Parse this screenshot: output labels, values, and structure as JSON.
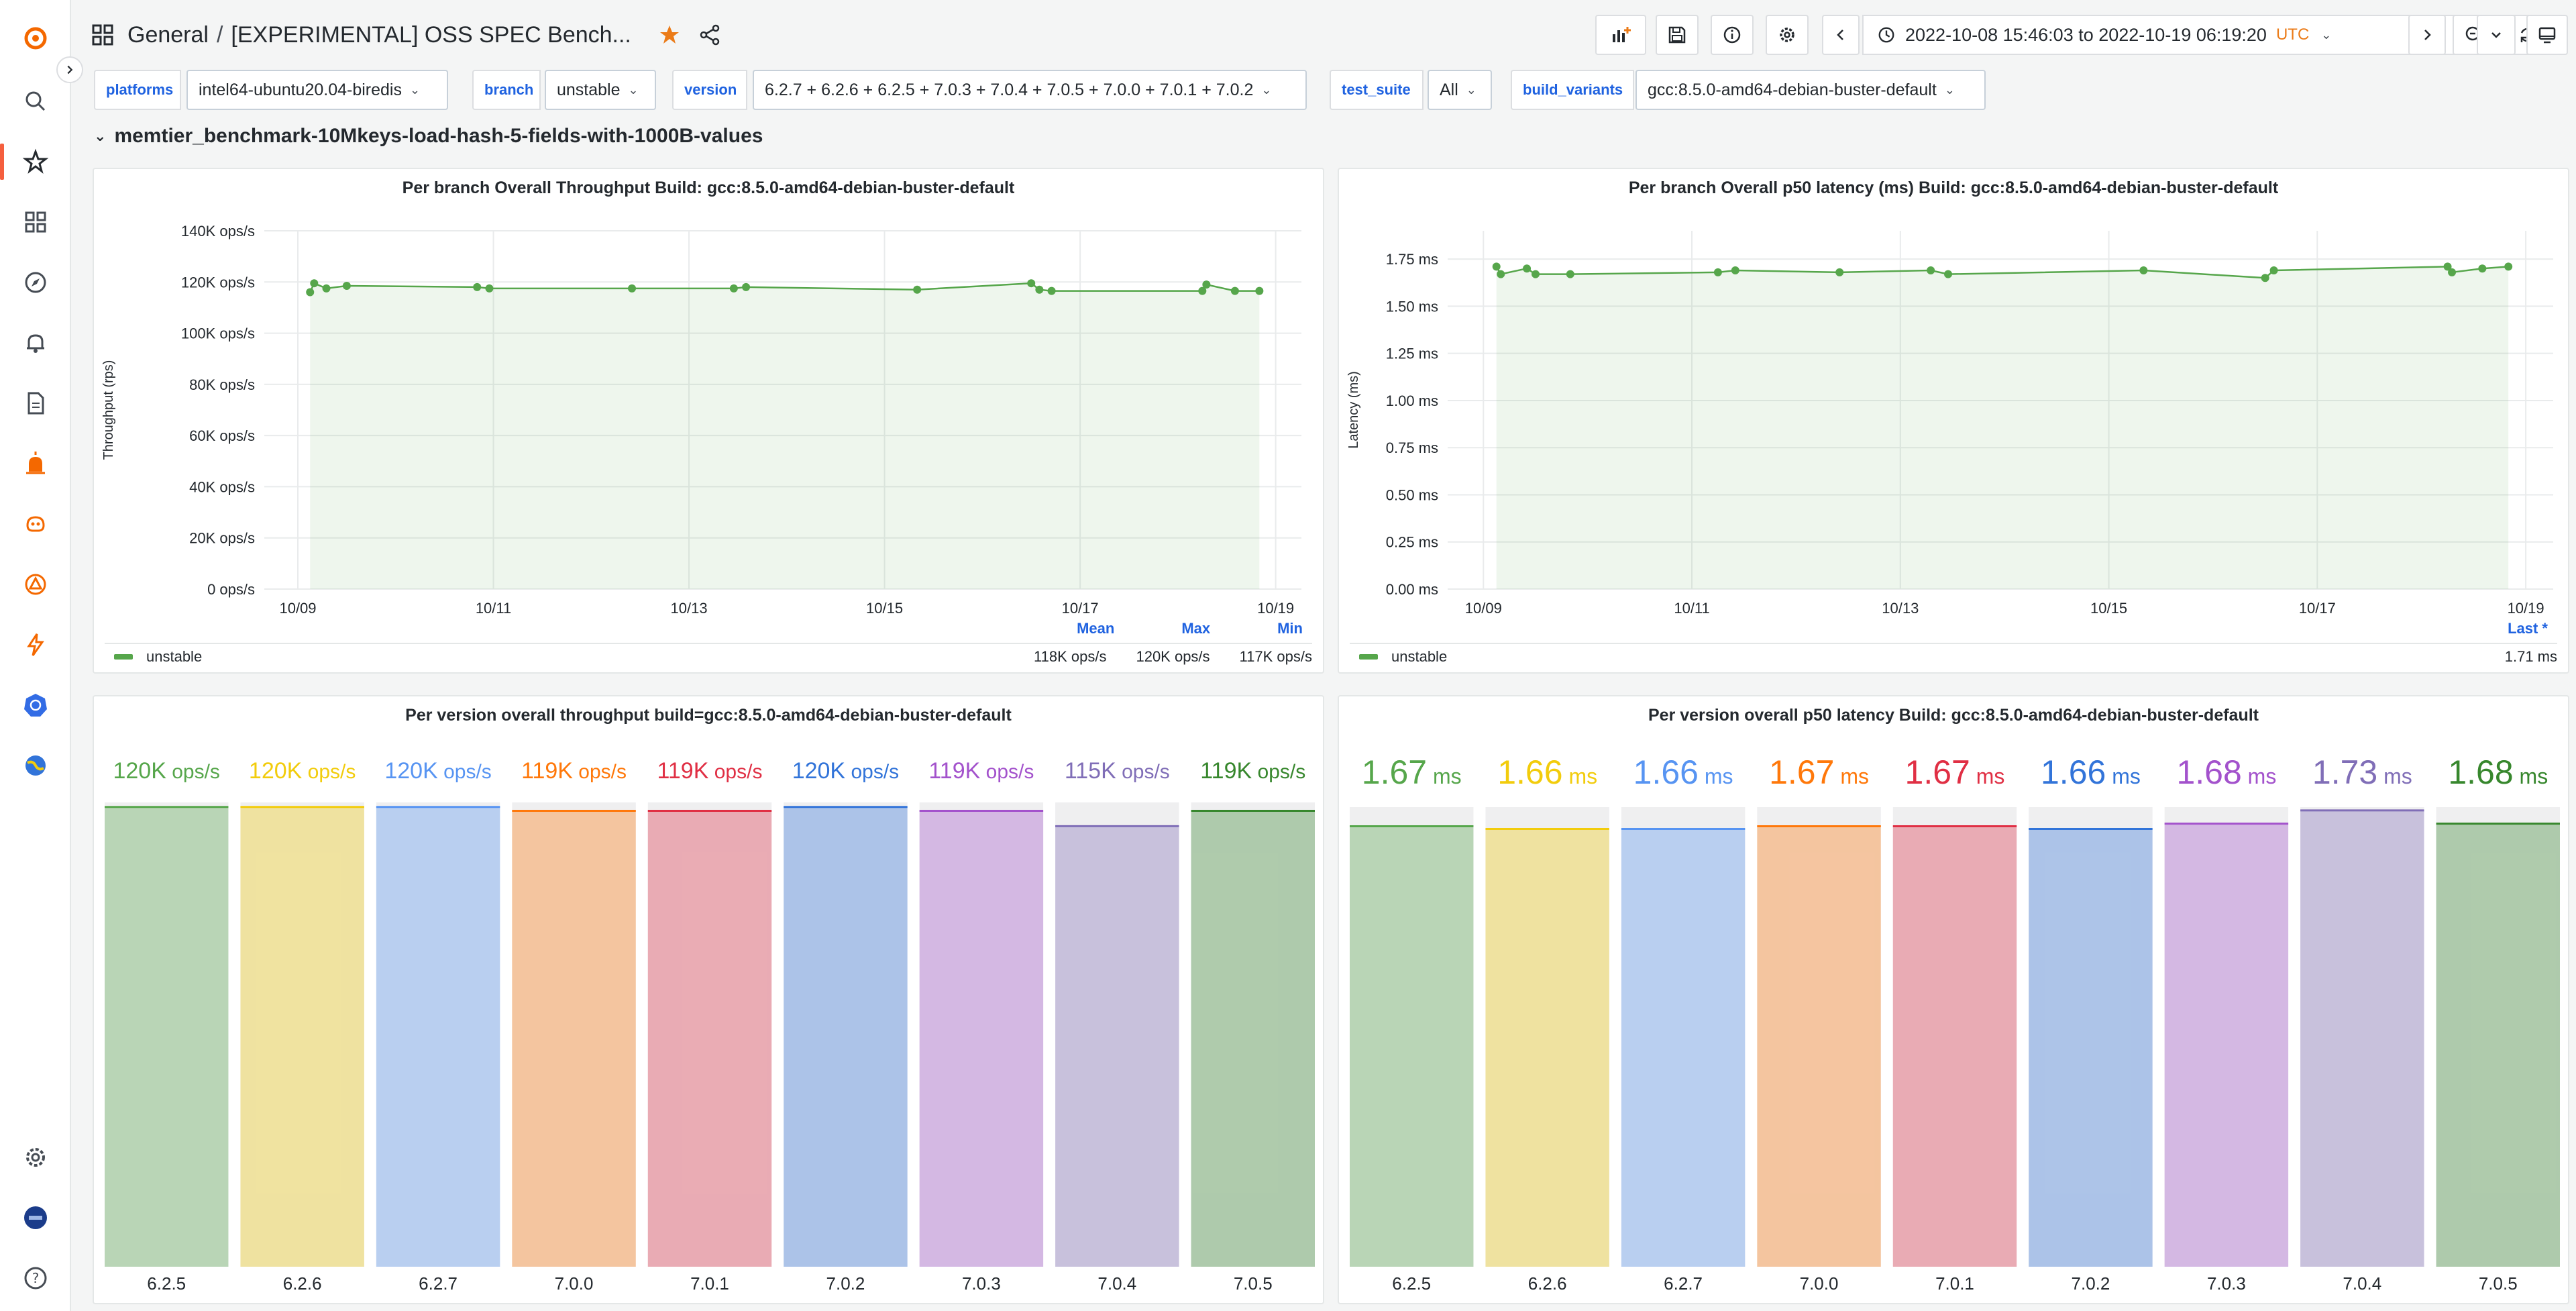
{
  "header": {
    "breadcrumb_folder": "General",
    "breadcrumb_sep": "/",
    "breadcrumb_title": "[EXPERIMENTAL] OSS SPEC Bench...",
    "time_range": "2022-10-08 15:46:03 to 2022-10-19 06:19:20",
    "timezone": "UTC"
  },
  "variables": [
    {
      "label": "platforms",
      "value": "intel64-ubuntu20.04-biredis"
    },
    {
      "label": "branch",
      "value": "unstable"
    },
    {
      "label": "version",
      "value": "6.2.7 + 6.2.6 + 6.2.5 + 7.0.3 + 7.0.4 + 7.0.5 + 7.0.0 + 7.0.1 + 7.0.2"
    },
    {
      "label": "test_suite",
      "value": "All"
    },
    {
      "label": "build_variants",
      "value": "gcc:8.5.0-amd64-debian-buster-default"
    }
  ],
  "row_title": "memtier_benchmark-10Mkeys-load-hash-5-fields-with-1000B-values",
  "colors": {
    "accent_orange": "#f55f3e",
    "series_green": "#56a64b",
    "link_blue": "#1f62e0"
  },
  "panels": {
    "throughput_timeseries": {
      "title": "Per branch Overall Throughput Build: gcc:8.5.0-amd64-debian-buster-default",
      "legend_headers": [
        "Mean",
        "Max",
        "Min"
      ],
      "legend_series": "unstable",
      "legend_values": [
        "118K ops/s",
        "120K ops/s",
        "117K ops/s"
      ]
    },
    "latency_timeseries": {
      "title": "Per branch Overall p50 latency (ms) Build: gcc:8.5.0-amd64-debian-buster-default",
      "legend_headers": [
        "Last *"
      ],
      "legend_series": "unstable",
      "legend_values": [
        "1.71 ms"
      ]
    },
    "throughput_bars": {
      "title": "Per version overall throughput build=gcc:8.5.0-amd64-debian-buster-default"
    },
    "latency_bars": {
      "title": "Per version overall p50 latency Build: gcc:8.5.0-amd64-debian-buster-default"
    }
  },
  "chart_data": [
    {
      "type": "line",
      "title": "Per branch Overall Throughput Build: gcc:8.5.0-amd64-debian-buster-default",
      "ylabel": "Throughput (rps)",
      "y_ticks": [
        "0 ops/s",
        "20K ops/s",
        "40K ops/s",
        "60K ops/s",
        "80K ops/s",
        "100K ops/s",
        "120K ops/s",
        "140K ops/s"
      ],
      "x_ticks": [
        "10/09",
        "10/11",
        "10/13",
        "10/15",
        "10/17",
        "10/19"
      ],
      "ylim": [
        0,
        140000
      ],
      "xlim": [
        "2022-10-08 15:46",
        "2022-10-19 06:19"
      ],
      "grid": true,
      "legend": "bottom",
      "series": [
        {
          "name": "unstable",
          "color": "#56a64b",
          "x": [
            "2022-10-09 03:00",
            "2022-10-09 04:00",
            "2022-10-09 07:00",
            "2022-10-09 12:00",
            "2022-10-10 20:00",
            "2022-10-10 23:00",
            "2022-10-12 10:00",
            "2022-10-13 11:00",
            "2022-10-13 14:00",
            "2022-10-15 08:00",
            "2022-10-16 12:00",
            "2022-10-16 14:00",
            "2022-10-16 17:00",
            "2022-10-18 06:00",
            "2022-10-18 07:00",
            "2022-10-18 14:00",
            "2022-10-18 20:00"
          ],
          "values": [
            116000,
            119500,
            117500,
            118500,
            118000,
            117500,
            117500,
            117500,
            118000,
            117000,
            119500,
            117000,
            116500,
            116500,
            119000,
            116500,
            116500
          ]
        }
      ]
    },
    {
      "type": "line",
      "title": "Per branch Overall p50 latency (ms) Build: gcc:8.5.0-amd64-debian-buster-default",
      "ylabel": "Latency (ms)",
      "y_ticks": [
        "0.00 ms",
        "0.25 ms",
        "0.50 ms",
        "0.75 ms",
        "1.00 ms",
        "1.25 ms",
        "1.50 ms",
        "1.75 ms"
      ],
      "x_ticks": [
        "10/09",
        "10/11",
        "10/13",
        "10/15",
        "10/17",
        "10/19"
      ],
      "ylim": [
        0,
        1.9
      ],
      "xlim": [
        "2022-10-08 15:46",
        "2022-10-19 06:19"
      ],
      "grid": true,
      "legend": "bottom",
      "series": [
        {
          "name": "unstable",
          "color": "#56a64b",
          "x": [
            "2022-10-09 03:00",
            "2022-10-09 04:00",
            "2022-10-09 10:00",
            "2022-10-09 12:00",
            "2022-10-09 20:00",
            "2022-10-11 06:00",
            "2022-10-11 10:00",
            "2022-10-12 10:00",
            "2022-10-13 07:00",
            "2022-10-13 11:00",
            "2022-10-15 08:00",
            "2022-10-16 12:00",
            "2022-10-16 14:00",
            "2022-10-18 06:00",
            "2022-10-18 07:00",
            "2022-10-18 14:00",
            "2022-10-18 20:00"
          ],
          "values": [
            1.71,
            1.67,
            1.7,
            1.67,
            1.67,
            1.68,
            1.69,
            1.68,
            1.69,
            1.67,
            1.69,
            1.65,
            1.69,
            1.71,
            1.68,
            1.7,
            1.71
          ]
        }
      ]
    },
    {
      "type": "bar",
      "title": "Per version overall throughput build=gcc:8.5.0-amd64-debian-buster-default",
      "categories": [
        "6.2.5",
        "6.2.6",
        "6.2.7",
        "7.0.0",
        "7.0.1",
        "7.0.2",
        "7.0.3",
        "7.0.4",
        "7.0.5"
      ],
      "values": [
        120000,
        120000,
        120000,
        119000,
        119000,
        120000,
        119000,
        115000,
        119000
      ],
      "value_labels": [
        "120K",
        "120K",
        "120K",
        "119K",
        "119K",
        "120K",
        "119K",
        "115K",
        "119K"
      ],
      "unit": "ops/s",
      "colors": [
        "#56a64b",
        "#f2cc0c",
        "#5794f2",
        "#ff780a",
        "#e02f44",
        "#3274d9",
        "#a352cc",
        "#806eb7",
        "#37872d"
      ],
      "ylim": [
        0,
        121000
      ]
    },
    {
      "type": "bar",
      "title": "Per version overall p50 latency Build: gcc:8.5.0-amd64-debian-buster-default",
      "categories": [
        "6.2.5",
        "6.2.6",
        "6.2.7",
        "7.0.0",
        "7.0.1",
        "7.0.2",
        "7.0.3",
        "7.0.4",
        "7.0.5"
      ],
      "values": [
        1.67,
        1.66,
        1.66,
        1.67,
        1.67,
        1.66,
        1.68,
        1.73,
        1.68
      ],
      "value_labels": [
        "1.67",
        "1.66",
        "1.66",
        "1.67",
        "1.67",
        "1.66",
        "1.68",
        "1.73",
        "1.68"
      ],
      "unit": "ms",
      "colors": [
        "#56a64b",
        "#f2cc0c",
        "#5794f2",
        "#ff780a",
        "#e02f44",
        "#3274d9",
        "#a352cc",
        "#806eb7",
        "#37872d"
      ],
      "ylim": [
        0,
        1.74
      ]
    }
  ]
}
